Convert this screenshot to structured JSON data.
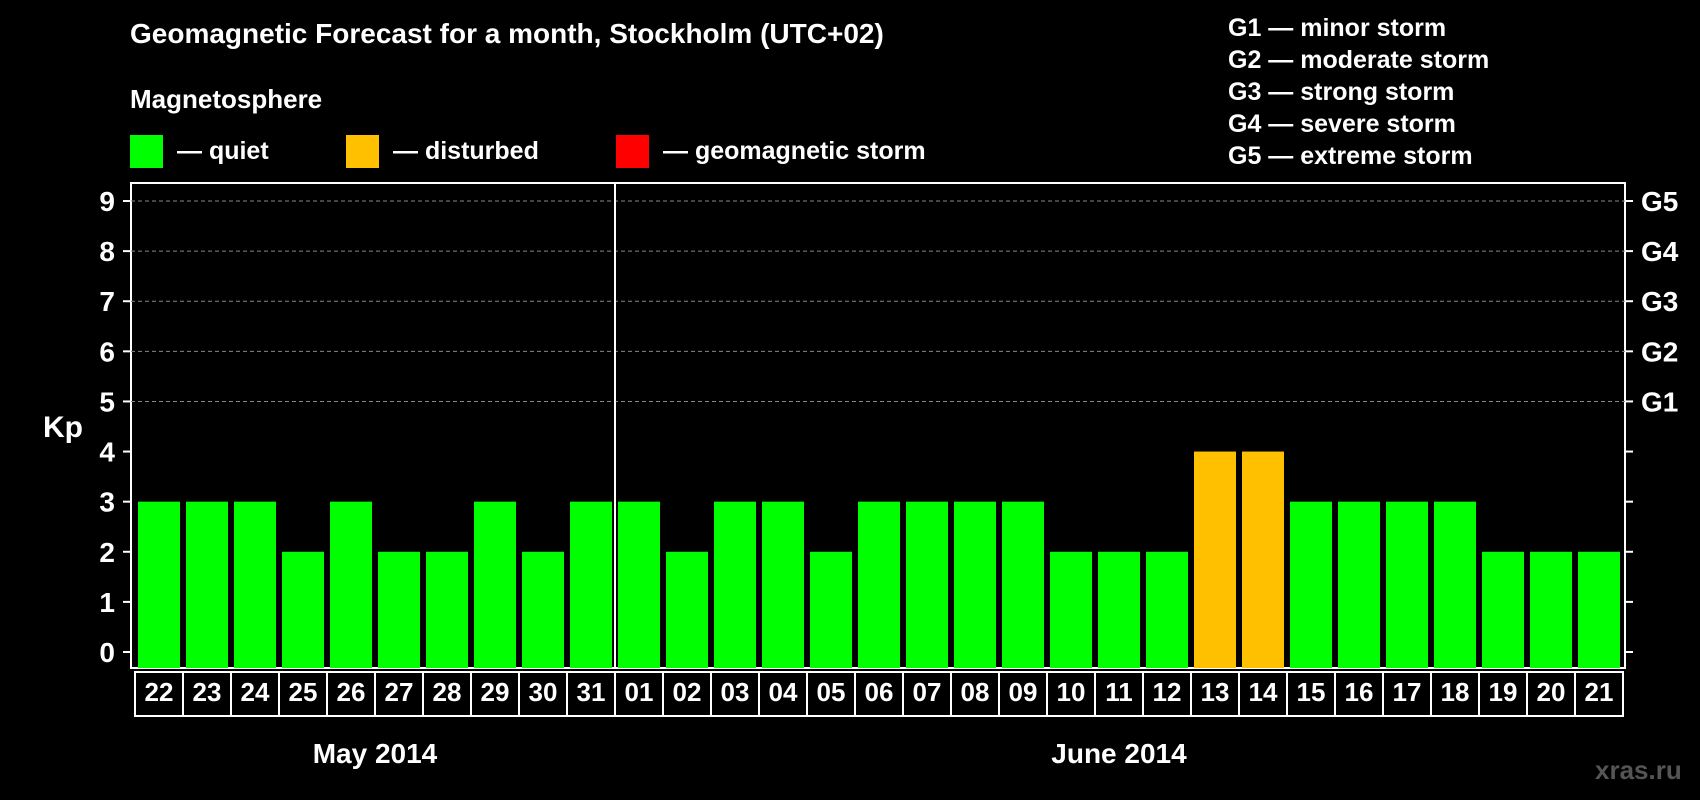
{
  "title": "Geomagnetic Forecast for a month, Stockholm (UTC+02)",
  "legend": {
    "heading": "Magnetosphere",
    "items": [
      {
        "label": "— quiet",
        "color": "#00ff00"
      },
      {
        "label": "— disturbed",
        "color": "#ffc000"
      },
      {
        "label": "— geomagnetic storm",
        "color": "#ff0000"
      }
    ]
  },
  "storm_scale": [
    "G1 — minor storm",
    "G2 — moderate storm",
    "G3 — strong storm",
    "G4 — severe storm",
    "G5 — extreme storm"
  ],
  "watermark": "xras.ru",
  "chart_data": {
    "type": "bar",
    "title": "Geomagnetic Forecast for a month, Stockholm (UTC+02)",
    "ylabel": "Kp",
    "ylim": [
      0,
      9
    ],
    "yticks": [
      "0",
      "1",
      "2",
      "3",
      "4",
      "5",
      "6",
      "7",
      "8",
      "9"
    ],
    "right_axis_labels": [
      {
        "kp": 5,
        "label": "G1"
      },
      {
        "kp": 6,
        "label": "G2"
      },
      {
        "kp": 7,
        "label": "G3"
      },
      {
        "kp": 8,
        "label": "G4"
      },
      {
        "kp": 9,
        "label": "G5"
      }
    ],
    "categories": [
      "22",
      "23",
      "24",
      "25",
      "26",
      "27",
      "28",
      "29",
      "30",
      "31",
      "01",
      "02",
      "03",
      "04",
      "05",
      "06",
      "07",
      "08",
      "09",
      "10",
      "11",
      "12",
      "13",
      "14",
      "15",
      "16",
      "17",
      "18",
      "19",
      "20",
      "21"
    ],
    "values": [
      3,
      3,
      3,
      2,
      3,
      2,
      2,
      3,
      2,
      3,
      3,
      2,
      3,
      3,
      2,
      3,
      3,
      3,
      3,
      2,
      2,
      2,
      4,
      4,
      3,
      3,
      3,
      3,
      2,
      2,
      2
    ],
    "status": [
      "quiet",
      "quiet",
      "quiet",
      "quiet",
      "quiet",
      "quiet",
      "quiet",
      "quiet",
      "quiet",
      "quiet",
      "quiet",
      "quiet",
      "quiet",
      "quiet",
      "quiet",
      "quiet",
      "quiet",
      "quiet",
      "quiet",
      "quiet",
      "quiet",
      "quiet",
      "disturbed",
      "disturbed",
      "quiet",
      "quiet",
      "quiet",
      "quiet",
      "quiet",
      "quiet",
      "quiet"
    ],
    "status_colors": {
      "quiet": "#00ff00",
      "disturbed": "#ffc000",
      "storm": "#ff0000"
    },
    "months": [
      {
        "label": "May 2014",
        "first": 0,
        "last": 9
      },
      {
        "label": "June 2014",
        "first": 10,
        "last": 30
      }
    ],
    "grid": true
  }
}
